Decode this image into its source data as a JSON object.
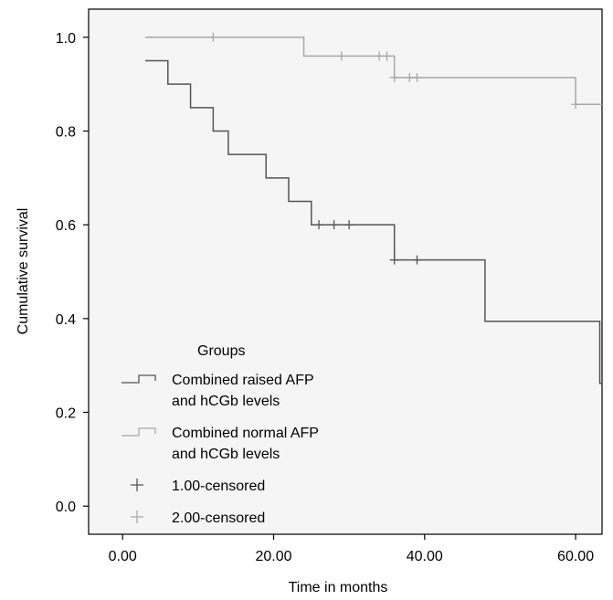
{
  "chart_data": {
    "type": "line",
    "subtype": "kaplan-meier step plot",
    "xlabel": "Time in months",
    "ylabel": "Cumulative survival",
    "xlim": [
      -4.5,
      63.5
    ],
    "ylim": [
      -0.06,
      1.06
    ],
    "x_ticks": [
      0,
      20,
      40,
      60
    ],
    "x_tick_labels": [
      "0.00",
      "20.00",
      "40.00",
      "60.00"
    ],
    "y_ticks": [
      0,
      0.2,
      0.4,
      0.6,
      0.8,
      1.0
    ],
    "y_tick_labels": [
      "0.0",
      "0.2",
      "0.4",
      "0.6",
      "0.8",
      "1.0"
    ],
    "grid": false,
    "plot_background": "#f5f5f5",
    "legend": {
      "title": "Groups",
      "placement": "bottom-left",
      "entries": [
        {
          "label_lines": [
            "Combined raised AFP",
            "and hCGb levels"
          ],
          "marker": "step",
          "color": "#555555"
        },
        {
          "label_lines": [
            "Combined normal AFP",
            "and hCGb levels"
          ],
          "marker": "step",
          "color": "#a8a8a8"
        },
        {
          "label_lines": [
            "1.00-censored"
          ],
          "marker": "plus",
          "color": "#555555"
        },
        {
          "label_lines": [
            "2.00-censored"
          ],
          "marker": "plus",
          "color": "#a8a8a8"
        }
      ]
    },
    "series": [
      {
        "group": 1,
        "color": "#555555",
        "steps": [
          [
            3,
            0.95
          ],
          [
            6,
            0.9
          ],
          [
            9,
            0.85
          ],
          [
            12,
            0.8
          ],
          [
            14,
            0.75
          ],
          [
            19,
            0.7
          ],
          [
            22,
            0.65
          ],
          [
            25,
            0.6
          ],
          [
            36,
            0.525
          ],
          [
            48,
            0.394
          ],
          [
            63.2,
            0.262
          ]
        ],
        "end_x": 63.5,
        "censored": [
          [
            26,
            0.6
          ],
          [
            28,
            0.6
          ],
          [
            30,
            0.6
          ],
          [
            36,
            0.525
          ],
          [
            39,
            0.525
          ]
        ]
      },
      {
        "group": 2,
        "color": "#a8a8a8",
        "steps": [
          [
            3,
            1.0
          ],
          [
            24,
            0.96
          ],
          [
            36,
            0.914
          ],
          [
            60,
            0.857
          ]
        ],
        "end_x": 63.5,
        "censored": [
          [
            12,
            1.0
          ],
          [
            29,
            0.96
          ],
          [
            34,
            0.96
          ],
          [
            35,
            0.96
          ],
          [
            36,
            0.914
          ],
          [
            38,
            0.914
          ],
          [
            39,
            0.914
          ],
          [
            60,
            0.857
          ]
        ]
      }
    ]
  }
}
